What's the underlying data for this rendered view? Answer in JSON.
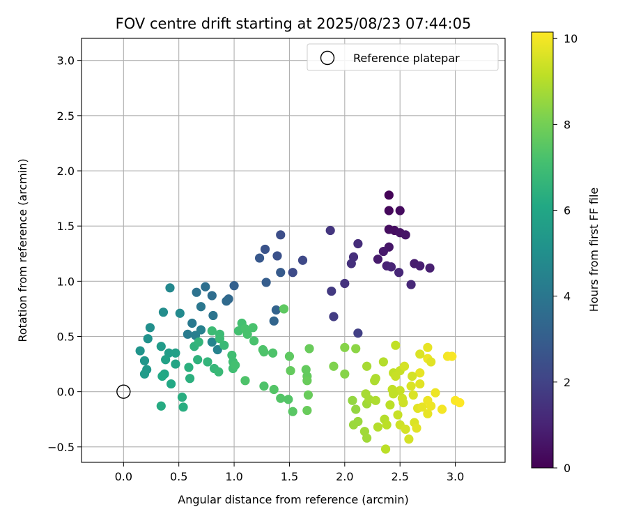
{
  "chart_data": {
    "type": "scatter",
    "title": "FOV centre drift starting at 2025/08/23 07:44:05",
    "xlabel": "Angular distance from reference (arcmin)",
    "ylabel": "Rotation from reference (arcmin)",
    "xlim": [
      -0.38,
      3.45
    ],
    "ylim": [
      -0.64,
      3.2
    ],
    "xticks": [
      {
        "v": 0.0,
        "label": "0.0"
      },
      {
        "v": 0.5,
        "label": "0.5"
      },
      {
        "v": 1.0,
        "label": "1.0"
      },
      {
        "v": 1.5,
        "label": "1.5"
      },
      {
        "v": 2.0,
        "label": "2.0"
      },
      {
        "v": 2.5,
        "label": "2.5"
      },
      {
        "v": 3.0,
        "label": "3.0"
      }
    ],
    "yticks": [
      {
        "v": -0.5,
        "label": "−0.5"
      },
      {
        "v": 0.0,
        "label": "0.0"
      },
      {
        "v": 0.5,
        "label": "0.5"
      },
      {
        "v": 1.0,
        "label": "1.0"
      },
      {
        "v": 1.5,
        "label": "1.5"
      },
      {
        "v": 2.0,
        "label": "2.0"
      },
      {
        "v": 2.5,
        "label": "2.5"
      },
      {
        "v": 3.0,
        "label": "3.0"
      }
    ],
    "grid": true,
    "legend": {
      "placement": "top-right",
      "entries": [
        {
          "label": "Reference platepar",
          "marker": "open-circle"
        }
      ]
    },
    "reference_point": {
      "x": 0.0,
      "y": 0.0
    },
    "colorbar": {
      "label": "Hours from first FF file",
      "colormap": "viridis",
      "range": [
        0,
        10.15
      ],
      "ticks": [
        {
          "v": 0,
          "label": "0"
        },
        {
          "v": 2,
          "label": "2"
        },
        {
          "v": 4,
          "label": "4"
        },
        {
          "v": 6,
          "label": "6"
        },
        {
          "v": 8,
          "label": "8"
        },
        {
          "v": 10,
          "label": "10"
        }
      ]
    },
    "points": [
      {
        "x": 2.4,
        "y": 1.78,
        "c": 0.1
      },
      {
        "x": 2.4,
        "y": 1.64,
        "c": 0.2
      },
      {
        "x": 2.5,
        "y": 1.64,
        "c": 0.3
      },
      {
        "x": 2.4,
        "y": 1.47,
        "c": 0.35
      },
      {
        "x": 2.45,
        "y": 1.46,
        "c": 0.4
      },
      {
        "x": 2.5,
        "y": 1.44,
        "c": 0.5
      },
      {
        "x": 2.55,
        "y": 1.42,
        "c": 0.55
      },
      {
        "x": 2.4,
        "y": 1.31,
        "c": 0.6
      },
      {
        "x": 2.35,
        "y": 1.27,
        "c": 0.7
      },
      {
        "x": 2.3,
        "y": 1.2,
        "c": 0.75
      },
      {
        "x": 2.63,
        "y": 1.16,
        "c": 0.8
      },
      {
        "x": 2.68,
        "y": 1.14,
        "c": 0.85
      },
      {
        "x": 2.77,
        "y": 1.12,
        "c": 0.9
      },
      {
        "x": 2.38,
        "y": 1.14,
        "c": 1.0
      },
      {
        "x": 2.42,
        "y": 1.13,
        "c": 1.05
      },
      {
        "x": 2.49,
        "y": 1.08,
        "c": 1.1
      },
      {
        "x": 2.6,
        "y": 0.97,
        "c": 1.15
      },
      {
        "x": 2.12,
        "y": 1.34,
        "c": 1.3
      },
      {
        "x": 2.08,
        "y": 1.22,
        "c": 1.35
      },
      {
        "x": 2.06,
        "y": 1.16,
        "c": 1.4
      },
      {
        "x": 2.0,
        "y": 0.98,
        "c": 1.5
      },
      {
        "x": 1.87,
        "y": 1.46,
        "c": 1.6
      },
      {
        "x": 1.88,
        "y": 0.91,
        "c": 1.7
      },
      {
        "x": 1.9,
        "y": 0.68,
        "c": 1.8
      },
      {
        "x": 2.12,
        "y": 0.53,
        "c": 1.9
      },
      {
        "x": 1.62,
        "y": 1.19,
        "c": 2.2
      },
      {
        "x": 1.53,
        "y": 1.08,
        "c": 2.3
      },
      {
        "x": 1.42,
        "y": 1.42,
        "c": 2.4
      },
      {
        "x": 1.39,
        "y": 1.23,
        "c": 2.5
      },
      {
        "x": 1.28,
        "y": 1.29,
        "c": 2.6
      },
      {
        "x": 1.23,
        "y": 1.21,
        "c": 2.8
      },
      {
        "x": 1.42,
        "y": 1.08,
        "c": 2.9
      },
      {
        "x": 1.29,
        "y": 0.99,
        "c": 3.0
      },
      {
        "x": 1.0,
        "y": 0.96,
        "c": 3.1
      },
      {
        "x": 1.38,
        "y": 0.74,
        "c": 3.2
      },
      {
        "x": 1.36,
        "y": 0.64,
        "c": 3.3
      },
      {
        "x": 0.95,
        "y": 0.84,
        "c": 3.4
      },
      {
        "x": 0.93,
        "y": 0.82,
        "c": 3.5
      },
      {
        "x": 0.8,
        "y": 0.87,
        "c": 3.6
      },
      {
        "x": 0.74,
        "y": 0.95,
        "c": 3.7
      },
      {
        "x": 0.66,
        "y": 0.9,
        "c": 3.8
      },
      {
        "x": 0.81,
        "y": 0.69,
        "c": 3.9
      },
      {
        "x": 0.7,
        "y": 0.77,
        "c": 4.0
      },
      {
        "x": 0.62,
        "y": 0.62,
        "c": 4.1
      },
      {
        "x": 0.58,
        "y": 0.52,
        "c": 4.2
      },
      {
        "x": 0.65,
        "y": 0.51,
        "c": 4.3
      },
      {
        "x": 0.7,
        "y": 0.56,
        "c": 4.4
      },
      {
        "x": 0.85,
        "y": 0.38,
        "c": 4.5
      },
      {
        "x": 0.8,
        "y": 0.45,
        "c": 4.6
      },
      {
        "x": 0.42,
        "y": 0.94,
        "c": 4.7
      },
      {
        "x": 0.51,
        "y": 0.71,
        "c": 4.8
      },
      {
        "x": 0.36,
        "y": 0.72,
        "c": 4.9
      },
      {
        "x": 0.24,
        "y": 0.58,
        "c": 5.0
      },
      {
        "x": 0.22,
        "y": 0.48,
        "c": 5.1
      },
      {
        "x": 0.15,
        "y": 0.37,
        "c": 5.2
      },
      {
        "x": 0.19,
        "y": 0.28,
        "c": 5.3
      },
      {
        "x": 0.21,
        "y": 0.2,
        "c": 5.4
      },
      {
        "x": 0.19,
        "y": 0.16,
        "c": 5.5
      },
      {
        "x": 0.34,
        "y": 0.41,
        "c": 5.5
      },
      {
        "x": 0.41,
        "y": 0.35,
        "c": 5.6
      },
      {
        "x": 0.47,
        "y": 0.35,
        "c": 5.7
      },
      {
        "x": 0.38,
        "y": 0.29,
        "c": 5.8
      },
      {
        "x": 0.47,
        "y": 0.25,
        "c": 5.9
      },
      {
        "x": 0.37,
        "y": 0.16,
        "c": 6.0
      },
      {
        "x": 0.35,
        "y": 0.14,
        "c": 6.1
      },
      {
        "x": 0.43,
        "y": 0.07,
        "c": 6.1
      },
      {
        "x": 0.34,
        "y": -0.13,
        "c": 6.2
      },
      {
        "x": 0.53,
        "y": -0.05,
        "c": 6.3
      },
      {
        "x": 0.54,
        "y": -0.14,
        "c": 6.3
      },
      {
        "x": 0.59,
        "y": 0.22,
        "c": 6.4
      },
      {
        "x": 0.6,
        "y": 0.12,
        "c": 6.4
      },
      {
        "x": 0.67,
        "y": 0.29,
        "c": 6.5
      },
      {
        "x": 0.64,
        "y": 0.41,
        "c": 6.5
      },
      {
        "x": 0.68,
        "y": 0.45,
        "c": 6.6
      },
      {
        "x": 0.76,
        "y": 0.27,
        "c": 6.6
      },
      {
        "x": 0.82,
        "y": 0.21,
        "c": 6.7
      },
      {
        "x": 0.86,
        "y": 0.18,
        "c": 6.8
      },
      {
        "x": 0.91,
        "y": 0.42,
        "c": 6.8
      },
      {
        "x": 0.87,
        "y": 0.48,
        "c": 6.9
      },
      {
        "x": 0.8,
        "y": 0.55,
        "c": 6.9
      },
      {
        "x": 0.87,
        "y": 0.52,
        "c": 6.9
      },
      {
        "x": 0.98,
        "y": 0.33,
        "c": 7.0
      },
      {
        "x": 0.99,
        "y": 0.27,
        "c": 7.0
      },
      {
        "x": 0.99,
        "y": 0.21,
        "c": 7.0
      },
      {
        "x": 1.01,
        "y": 0.24,
        "c": 7.1
      },
      {
        "x": 1.04,
        "y": 0.55,
        "c": 7.1
      },
      {
        "x": 1.07,
        "y": 0.62,
        "c": 7.1
      },
      {
        "x": 1.1,
        "y": 0.57,
        "c": 7.2
      },
      {
        "x": 1.12,
        "y": 0.52,
        "c": 7.2
      },
      {
        "x": 1.17,
        "y": 0.58,
        "c": 7.2
      },
      {
        "x": 1.18,
        "y": 0.46,
        "c": 7.2
      },
      {
        "x": 1.26,
        "y": 0.38,
        "c": 7.3
      },
      {
        "x": 1.27,
        "y": 0.36,
        "c": 7.3
      },
      {
        "x": 1.35,
        "y": 0.35,
        "c": 7.3
      },
      {
        "x": 1.1,
        "y": 0.1,
        "c": 7.3
      },
      {
        "x": 1.27,
        "y": 0.05,
        "c": 7.3
      },
      {
        "x": 1.36,
        "y": 0.02,
        "c": 7.4
      },
      {
        "x": 1.42,
        "y": -0.06,
        "c": 7.4
      },
      {
        "x": 1.49,
        "y": -0.07,
        "c": 7.4
      },
      {
        "x": 1.53,
        "y": -0.18,
        "c": 7.5
      },
      {
        "x": 1.45,
        "y": 0.75,
        "c": 7.6
      },
      {
        "x": 1.5,
        "y": 0.32,
        "c": 7.6
      },
      {
        "x": 1.51,
        "y": 0.19,
        "c": 7.7
      },
      {
        "x": 1.65,
        "y": 0.2,
        "c": 7.7
      },
      {
        "x": 1.66,
        "y": 0.14,
        "c": 7.7
      },
      {
        "x": 1.66,
        "y": 0.1,
        "c": 7.8
      },
      {
        "x": 1.67,
        "y": -0.03,
        "c": 7.8
      },
      {
        "x": 1.68,
        "y": 0.39,
        "c": 7.8
      },
      {
        "x": 1.66,
        "y": -0.17,
        "c": 7.8
      },
      {
        "x": 1.9,
        "y": 0.23,
        "c": 8.2
      },
      {
        "x": 2.0,
        "y": 0.4,
        "c": 8.3
      },
      {
        "x": 2.0,
        "y": 0.16,
        "c": 8.3
      },
      {
        "x": 2.1,
        "y": 0.39,
        "c": 8.4
      },
      {
        "x": 2.07,
        "y": -0.08,
        "c": 8.5
      },
      {
        "x": 2.1,
        "y": -0.16,
        "c": 8.5
      },
      {
        "x": 2.08,
        "y": -0.3,
        "c": 8.6
      },
      {
        "x": 2.12,
        "y": -0.27,
        "c": 8.6
      },
      {
        "x": 2.18,
        "y": -0.36,
        "c": 8.7
      },
      {
        "x": 2.2,
        "y": -0.42,
        "c": 8.7
      },
      {
        "x": 2.2,
        "y": -0.11,
        "c": 8.7
      },
      {
        "x": 2.19,
        "y": -0.02,
        "c": 8.8
      },
      {
        "x": 2.2,
        "y": 0.23,
        "c": 8.8
      },
      {
        "x": 2.22,
        "y": -0.07,
        "c": 8.8
      },
      {
        "x": 2.27,
        "y": 0.1,
        "c": 8.9
      },
      {
        "x": 2.28,
        "y": 0.12,
        "c": 8.9
      },
      {
        "x": 2.28,
        "y": -0.08,
        "c": 8.9
      },
      {
        "x": 2.3,
        "y": -0.32,
        "c": 9.0
      },
      {
        "x": 2.35,
        "y": 0.27,
        "c": 9.0
      },
      {
        "x": 2.36,
        "y": -0.25,
        "c": 9.0
      },
      {
        "x": 2.38,
        "y": -0.3,
        "c": 9.1
      },
      {
        "x": 2.37,
        "y": -0.52,
        "c": 9.1
      },
      {
        "x": 2.41,
        "y": -0.12,
        "c": 9.1
      },
      {
        "x": 2.43,
        "y": 0.02,
        "c": 9.2
      },
      {
        "x": 2.44,
        "y": 0.17,
        "c": 9.2
      },
      {
        "x": 2.46,
        "y": 0.42,
        "c": 9.2
      },
      {
        "x": 2.46,
        "y": 0.14,
        "c": 9.3
      },
      {
        "x": 2.48,
        "y": -0.21,
        "c": 9.3
      },
      {
        "x": 2.5,
        "y": 0.19,
        "c": 9.3
      },
      {
        "x": 2.5,
        "y": -0.3,
        "c": 9.4
      },
      {
        "x": 2.52,
        "y": -0.06,
        "c": 9.4
      },
      {
        "x": 2.53,
        "y": -0.1,
        "c": 9.4
      },
      {
        "x": 2.54,
        "y": 0.23,
        "c": 9.5
      },
      {
        "x": 2.55,
        "y": -0.34,
        "c": 9.5
      },
      {
        "x": 2.58,
        "y": -0.43,
        "c": 9.5
      },
      {
        "x": 2.6,
        "y": 0.05,
        "c": 9.6
      },
      {
        "x": 2.62,
        "y": -0.03,
        "c": 9.6
      },
      {
        "x": 2.63,
        "y": -0.28,
        "c": 9.6
      },
      {
        "x": 2.65,
        "y": -0.33,
        "c": 9.7
      },
      {
        "x": 2.66,
        "y": -0.15,
        "c": 9.7
      },
      {
        "x": 2.68,
        "y": 0.07,
        "c": 9.7
      },
      {
        "x": 2.68,
        "y": 0.17,
        "c": 9.8
      },
      {
        "x": 2.7,
        "y": -0.14,
        "c": 9.8
      },
      {
        "x": 2.75,
        "y": -0.2,
        "c": 9.8
      },
      {
        "x": 2.75,
        "y": 0.3,
        "c": 9.9
      },
      {
        "x": 2.78,
        "y": -0.13,
        "c": 9.9
      },
      {
        "x": 2.82,
        "y": -0.01,
        "c": 9.9
      },
      {
        "x": 2.88,
        "y": -0.16,
        "c": 10.0
      },
      {
        "x": 2.93,
        "y": 0.32,
        "c": 10.0
      },
      {
        "x": 2.97,
        "y": 0.32,
        "c": 10.05
      },
      {
        "x": 3.0,
        "y": -0.08,
        "c": 10.1
      },
      {
        "x": 3.04,
        "y": -0.1,
        "c": 10.15
      },
      {
        "x": 2.75,
        "y": 0.4,
        "c": 9.8
      },
      {
        "x": 2.78,
        "y": 0.27,
        "c": 9.7
      },
      {
        "x": 2.68,
        "y": 0.34,
        "c": 9.6
      },
      {
        "x": 2.61,
        "y": 0.14,
        "c": 9.5
      },
      {
        "x": 2.75,
        "y": -0.08,
        "c": 9.9
      },
      {
        "x": 2.5,
        "y": 0.01,
        "c": 9.3
      },
      {
        "x": 2.44,
        "y": -0.02,
        "c": 9.2
      }
    ]
  }
}
